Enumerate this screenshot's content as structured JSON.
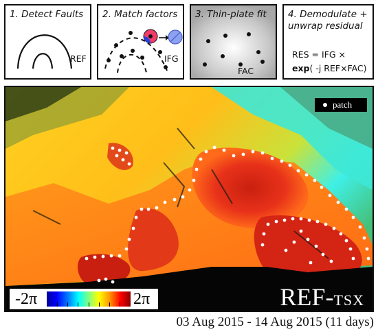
{
  "panels": [
    {
      "title_lines": [
        "1. Detect Faults"
      ],
      "label": "REF"
    },
    {
      "title_lines": [
        "2. Match factors"
      ],
      "label": "IFG"
    },
    {
      "title_lines": [
        "3. Thin-plate fit"
      ],
      "label": "FAC"
    },
    {
      "title_lines": [
        "4. Demodulate +",
        "unwrap residual"
      ],
      "equation_line1": "RES = IFG ×",
      "equation_bold": "exp",
      "equation_line2": "( -j REF×FAC)"
    }
  ],
  "map": {
    "legend_label": "patch",
    "colorbar_min": "-2π",
    "colorbar_max": "2π",
    "scene_label_main": "REF-",
    "scene_label_sub": "TSX",
    "colors": {
      "red": "#e8321a",
      "orange": "#ff8a1a",
      "yellow": "#ffd11f",
      "cyan": "#3ff0e6",
      "green": "#5fbf5a"
    }
  },
  "date_range": "03 Aug 2015 - 14 Aug 2015 (11 days)"
}
